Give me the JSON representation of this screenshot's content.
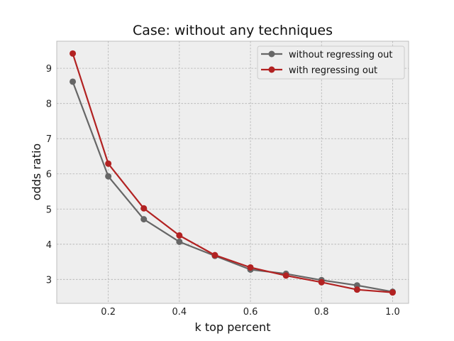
{
  "chart_data": {
    "type": "line",
    "title": "Case: without any techniques",
    "xlabel": "k top percent",
    "ylabel": "odds ratio",
    "x": [
      0.1,
      0.2,
      0.3,
      0.4,
      0.5,
      0.6,
      0.7,
      0.8,
      0.9,
      1.0
    ],
    "xlim": [
      0.055,
      1.045
    ],
    "ylim": [
      2.32,
      9.77
    ],
    "xticks": [
      0.2,
      0.4,
      0.6,
      0.8,
      1.0
    ],
    "xtick_labels": [
      "0.2",
      "0.4",
      "0.6",
      "0.8",
      "1.0"
    ],
    "yticks": [
      3,
      4,
      5,
      6,
      7,
      8,
      9
    ],
    "ytick_labels": [
      "3",
      "4",
      "5",
      "6",
      "7",
      "8",
      "9"
    ],
    "grid": true,
    "legend_position": "top-right",
    "series": [
      {
        "name": "without regressing out",
        "color": "#666666",
        "values": [
          8.62,
          5.93,
          4.71,
          4.07,
          3.67,
          3.28,
          3.16,
          2.98,
          2.83,
          2.65
        ]
      },
      {
        "name": "with regressing out",
        "color": "#b22222",
        "values": [
          9.42,
          6.29,
          5.02,
          4.25,
          3.69,
          3.34,
          3.11,
          2.92,
          2.71,
          2.63
        ]
      }
    ]
  }
}
